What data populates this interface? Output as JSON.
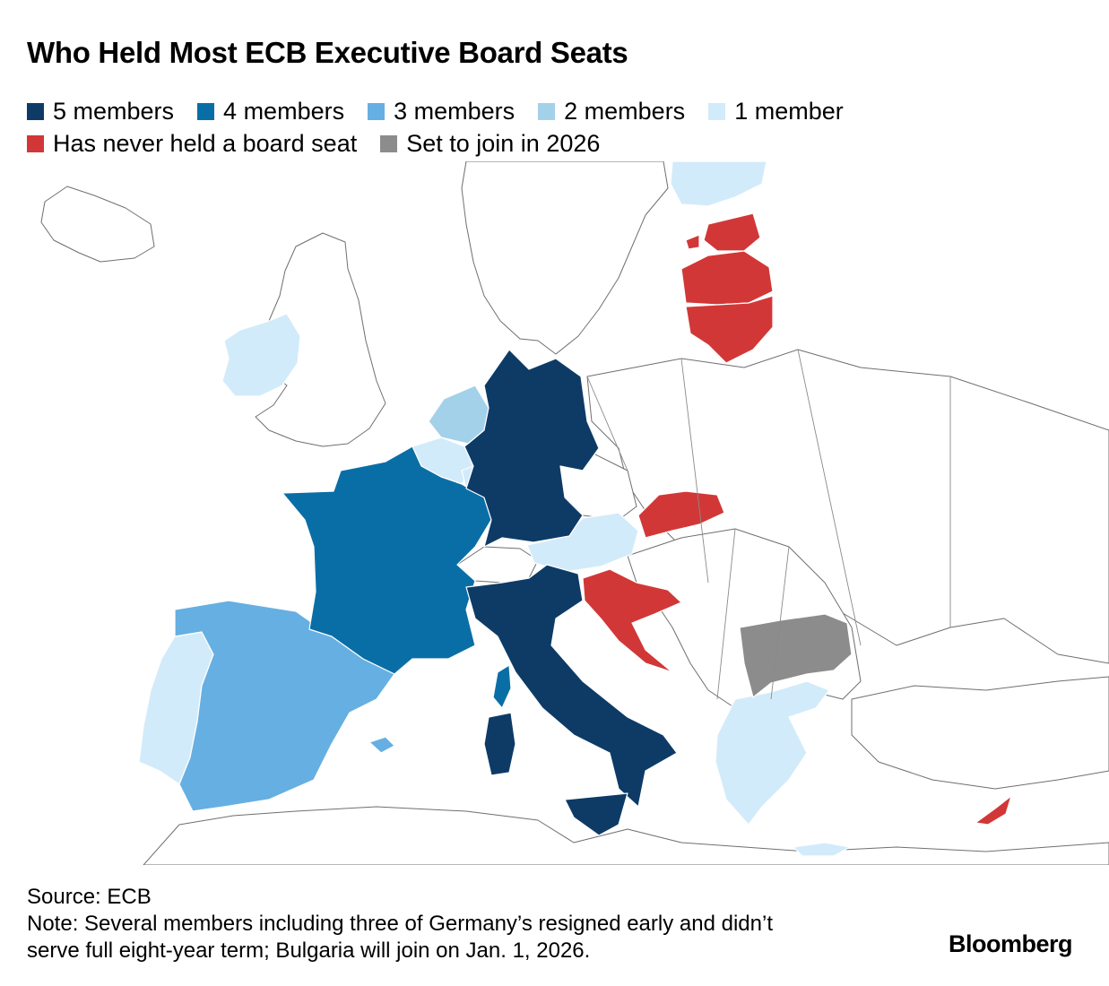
{
  "title": "Who Held Most ECB Executive Board Seats",
  "legend": [
    {
      "label": "5 members",
      "color": "#0d3b66"
    },
    {
      "label": "4 members",
      "color": "#0a6ea6"
    },
    {
      "label": "3 members",
      "color": "#66afe2"
    },
    {
      "label": "2 members",
      "color": "#a3d1ea"
    },
    {
      "label": "1 member",
      "color": "#d2ebfa"
    },
    {
      "label": "Has never held a board seat",
      "color": "#d23737"
    },
    {
      "label": "Set to join in 2026",
      "color": "#8c8c8c"
    }
  ],
  "countries": [
    {
      "name": "Germany",
      "category": "5 members"
    },
    {
      "name": "Italy",
      "category": "5 members"
    },
    {
      "name": "France",
      "category": "4 members"
    },
    {
      "name": "Spain",
      "category": "3 members"
    },
    {
      "name": "Netherlands",
      "category": "2 members"
    },
    {
      "name": "Ireland",
      "category": "1 member"
    },
    {
      "name": "Belgium",
      "category": "1 member"
    },
    {
      "name": "Luxembourg",
      "category": "1 member"
    },
    {
      "name": "Austria",
      "category": "1 member"
    },
    {
      "name": "Portugal",
      "category": "1 member"
    },
    {
      "name": "Greece",
      "category": "1 member"
    },
    {
      "name": "Finland",
      "category": "1 member"
    },
    {
      "name": "Estonia",
      "category": "Has never held a board seat"
    },
    {
      "name": "Latvia",
      "category": "Has never held a board seat"
    },
    {
      "name": "Lithuania",
      "category": "Has never held a board seat"
    },
    {
      "name": "Slovakia",
      "category": "Has never held a board seat"
    },
    {
      "name": "Croatia",
      "category": "Has never held a board seat"
    },
    {
      "name": "Cyprus",
      "category": "Has never held a board seat"
    },
    {
      "name": "Bulgaria",
      "category": "Set to join in 2026"
    }
  ],
  "footer": {
    "source": "Source: ECB",
    "note_line1": "Note: Several members including three of Germany’s resigned early and didn’t",
    "note_line2": "serve full eight-year term; Bulgaria will join on Jan. 1, 2026."
  },
  "brand": "Bloomberg"
}
